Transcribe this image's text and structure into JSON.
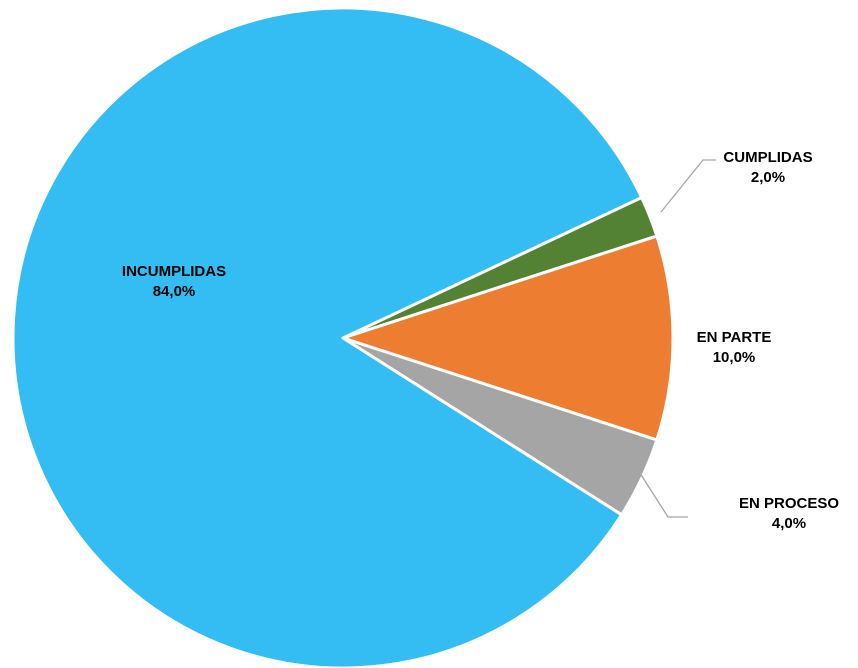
{
  "chart_data": {
    "type": "pie",
    "categories": [
      "CUMPLIDAS",
      "EN PARTE",
      "EN PROCESO",
      "INCUMPLIDAS"
    ],
    "values": [
      2.0,
      10.0,
      4.0,
      84.0
    ],
    "value_labels": [
      "2,0%",
      "10,0%",
      "4,0%",
      "84,0%"
    ],
    "colors": [
      "#548235",
      "#ed7d31",
      "#a5a5a5",
      "#33bdf2"
    ],
    "title": "",
    "legend": "none",
    "data_labels": "category and percentage"
  }
}
